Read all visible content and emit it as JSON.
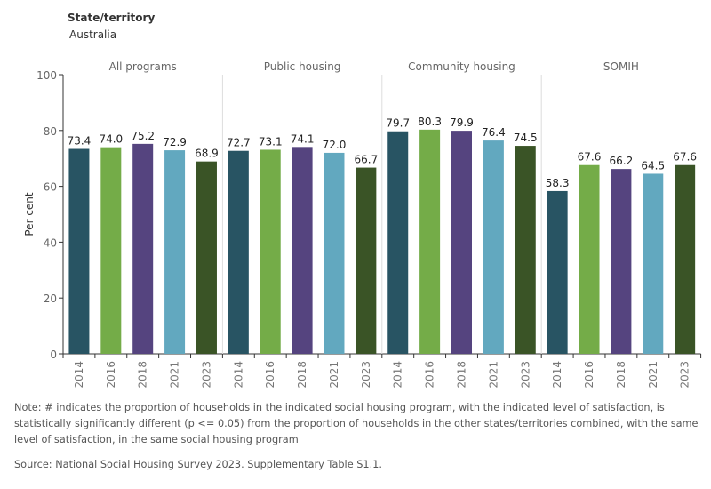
{
  "header": {
    "filter_label": "State/territory",
    "filter_value": "Australia"
  },
  "chart_data": {
    "type": "bar",
    "ylabel": "Per cent",
    "ylim": [
      0,
      100
    ],
    "yticks": [
      0,
      20,
      40,
      60,
      80,
      100
    ],
    "grid": false,
    "panels": [
      "All programs",
      "Public housing",
      "Community housing",
      "SOMIH"
    ],
    "categories": [
      "2014",
      "2016",
      "2018",
      "2021",
      "2023"
    ],
    "colors": [
      "#285463",
      "#74ac48",
      "#55447f",
      "#62a8bf",
      "#3a5426"
    ],
    "values": [
      [
        73.4,
        74.0,
        75.2,
        72.9,
        68.9
      ],
      [
        72.7,
        73.1,
        74.1,
        72.0,
        66.7
      ],
      [
        79.7,
        80.3,
        79.9,
        76.4,
        74.5
      ],
      [
        58.3,
        67.6,
        66.2,
        64.5,
        67.6
      ]
    ],
    "labels": [
      [
        "73.4",
        "74.0",
        "75.2",
        "72.9",
        "68.9"
      ],
      [
        "72.7",
        "73.1",
        "74.1",
        "72.0",
        "66.7"
      ],
      [
        "79.7",
        "80.3",
        "79.9",
        "76.4",
        "74.5"
      ],
      [
        "58.3",
        "67.6",
        "66.2",
        "64.5",
        "67.6"
      ]
    ]
  },
  "footer": {
    "note": "Note: # indicates the proportion of households in the indicated social housing program, with the indicated level of satisfaction, is statistically significantly different (p <= 0.05) from the proportion of households in the other states/territories combined, with the same level of satisfaction, in the same social housing program",
    "source": "Source: National Social Housing Survey 2023. Supplementary Table S1.1."
  }
}
